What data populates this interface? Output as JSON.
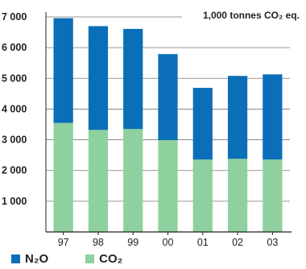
{
  "chart_data": {
    "type": "bar",
    "stacked": true,
    "unit_label": "1,000 tonnes CO₂ eq.",
    "categories": [
      "97",
      "98",
      "99",
      "00",
      "01",
      "02",
      "03"
    ],
    "series": [
      {
        "name": "CO₂",
        "color": "#8fd19e",
        "values": [
          3550,
          3320,
          3350,
          2990,
          2360,
          2380,
          2360
        ]
      },
      {
        "name": "N₂O",
        "color": "#0a6fb8",
        "values": [
          3410,
          3380,
          3260,
          2800,
          2330,
          2700,
          2770
        ]
      }
    ],
    "ylim": [
      0,
      7000
    ],
    "yticks": [
      1000,
      2000,
      3000,
      4000,
      5000,
      6000,
      7000
    ],
    "ytick_labels": [
      "1 000",
      "2 000",
      "3 000",
      "4 000",
      "5 000",
      "6 000",
      "7 000"
    ],
    "grid": true,
    "legend": {
      "placement": "bottom-left",
      "entries": [
        "N₂O",
        "CO₂"
      ]
    }
  }
}
